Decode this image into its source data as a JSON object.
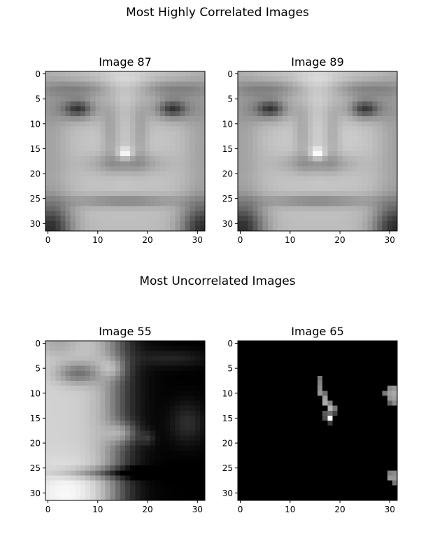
{
  "figure": {
    "suptitle_top": "Most Highly Correlated Images",
    "suptitle_bottom": "Most Uncorrelated Images"
  },
  "chart_data": [
    {
      "type": "heatmap",
      "title": "Image 87",
      "colormap": "gray",
      "group": "Most Highly Correlated Images",
      "x_ticks": [
        0,
        10,
        20,
        30
      ],
      "y_ticks": [
        0,
        5,
        10,
        15,
        20,
        25,
        30
      ],
      "xlim": [
        -0.5,
        31.5
      ],
      "ylim": [
        31.5,
        -0.5
      ],
      "grid": false,
      "size": [
        32,
        32
      ],
      "face": "frontal"
    },
    {
      "type": "heatmap",
      "title": "Image 89",
      "colormap": "gray",
      "group": "Most Highly Correlated Images",
      "x_ticks": [
        0,
        10,
        20,
        30
      ],
      "y_ticks": [
        0,
        5,
        10,
        15,
        20,
        25,
        30
      ],
      "xlim": [
        -0.5,
        31.5
      ],
      "ylim": [
        31.5,
        -0.5
      ],
      "grid": false,
      "size": [
        32,
        32
      ],
      "face": "frontal"
    },
    {
      "type": "heatmap",
      "title": "Image 55",
      "colormap": "gray",
      "group": "Most Uncorrelated Images",
      "x_ticks": [
        0,
        10,
        20,
        30
      ],
      "y_ticks": [
        0,
        5,
        10,
        15,
        20,
        25,
        30
      ],
      "xlim": [
        -0.5,
        31.5
      ],
      "ylim": [
        31.5,
        -0.5
      ],
      "grid": false,
      "size": [
        32,
        32
      ],
      "face": "side-lit"
    },
    {
      "type": "heatmap",
      "title": "Image 65",
      "colormap": "gray",
      "group": "Most Uncorrelated Images",
      "x_ticks": [
        0,
        10,
        20,
        30
      ],
      "y_ticks": [
        0,
        5,
        10,
        15,
        20,
        25,
        30
      ],
      "xlim": [
        -0.5,
        31.5
      ],
      "ylim": [
        31.5,
        -0.5
      ],
      "grid": false,
      "size": [
        32,
        32
      ],
      "face": "dark",
      "bright_pixels": [
        {
          "x": 16,
          "y": 7,
          "v": 120
        },
        {
          "x": 16,
          "y": 8,
          "v": 130
        },
        {
          "x": 16,
          "y": 9,
          "v": 140
        },
        {
          "x": 16,
          "y": 10,
          "v": 150
        },
        {
          "x": 17,
          "y": 10,
          "v": 110
        },
        {
          "x": 17,
          "y": 11,
          "v": 160
        },
        {
          "x": 17,
          "y": 12,
          "v": 170
        },
        {
          "x": 18,
          "y": 12,
          "v": 130
        },
        {
          "x": 18,
          "y": 13,
          "v": 180
        },
        {
          "x": 19,
          "y": 13,
          "v": 120
        },
        {
          "x": 17,
          "y": 14,
          "v": 90
        },
        {
          "x": 18,
          "y": 14,
          "v": 110
        },
        {
          "x": 18,
          "y": 15,
          "v": 255
        },
        {
          "x": 17,
          "y": 15,
          "v": 80
        },
        {
          "x": 19,
          "y": 14,
          "v": 70
        },
        {
          "x": 18,
          "y": 16,
          "v": 60
        },
        {
          "x": 30,
          "y": 9,
          "v": 140
        },
        {
          "x": 31,
          "y": 9,
          "v": 150
        },
        {
          "x": 30,
          "y": 10,
          "v": 160
        },
        {
          "x": 31,
          "y": 10,
          "v": 170
        },
        {
          "x": 29,
          "y": 10,
          "v": 120
        },
        {
          "x": 30,
          "y": 11,
          "v": 150
        },
        {
          "x": 31,
          "y": 11,
          "v": 160
        },
        {
          "x": 31,
          "y": 12,
          "v": 140
        },
        {
          "x": 30,
          "y": 12,
          "v": 100
        },
        {
          "x": 30,
          "y": 26,
          "v": 130
        },
        {
          "x": 31,
          "y": 26,
          "v": 140
        },
        {
          "x": 30,
          "y": 27,
          "v": 150
        },
        {
          "x": 31,
          "y": 27,
          "v": 150
        },
        {
          "x": 31,
          "y": 28,
          "v": 120
        }
      ]
    }
  ]
}
